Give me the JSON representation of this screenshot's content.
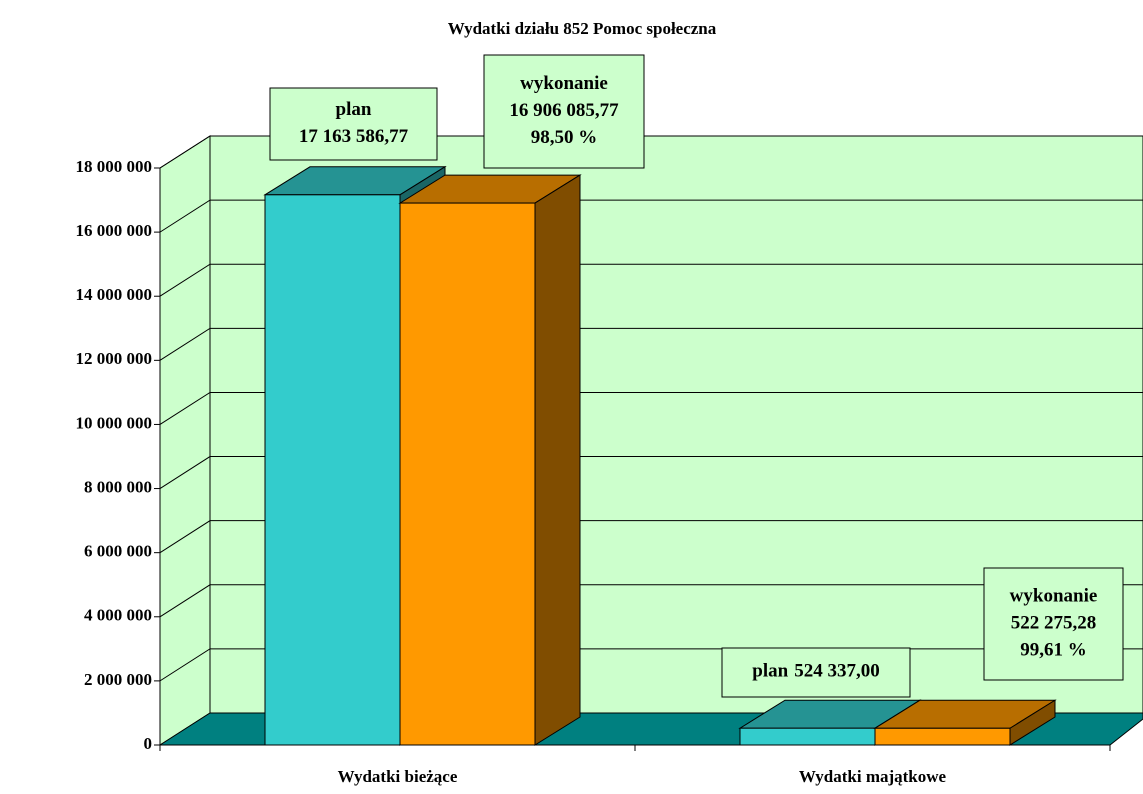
{
  "chart_data": {
    "type": "bar3d",
    "title": "Wydatki działu 852 Pomoc społeczna",
    "categories": [
      "Wydatki bieżące",
      "Wydatki majątkowe"
    ],
    "series": [
      {
        "name": "plan",
        "color": "#33cccc",
        "values": [
          17163586.77,
          524337.0
        ],
        "value_labels": [
          "17 163 586,77",
          "524 337,00"
        ]
      },
      {
        "name": "wykonanie",
        "color": "#ff9900",
        "values": [
          16906085.77,
          522275.28
        ],
        "value_labels": [
          "16 906 085,77",
          "522 275,28"
        ],
        "percent_labels": [
          "98,50 %",
          "99,61 %"
        ]
      }
    ],
    "ylim": [
      0,
      18000000
    ],
    "yticks": [
      0,
      {
        "value": 2000000,
        "label": "2 000 000"
      },
      {
        "value": 4000000,
        "label": "4 000 000"
      },
      {
        "value": 6000000,
        "label": "6 000 000"
      },
      {
        "value": 8000000,
        "label": "8 000 000"
      },
      {
        "value": 10000000,
        "label": "10 000 000"
      },
      {
        "value": 12000000,
        "label": "12 000 000"
      },
      {
        "value": 14000000,
        "label": "14 000 000"
      },
      {
        "value": 16000000,
        "label": "16 000 000"
      },
      {
        "value": 18000000,
        "label": "18 000 000"
      }
    ],
    "grid": true
  }
}
